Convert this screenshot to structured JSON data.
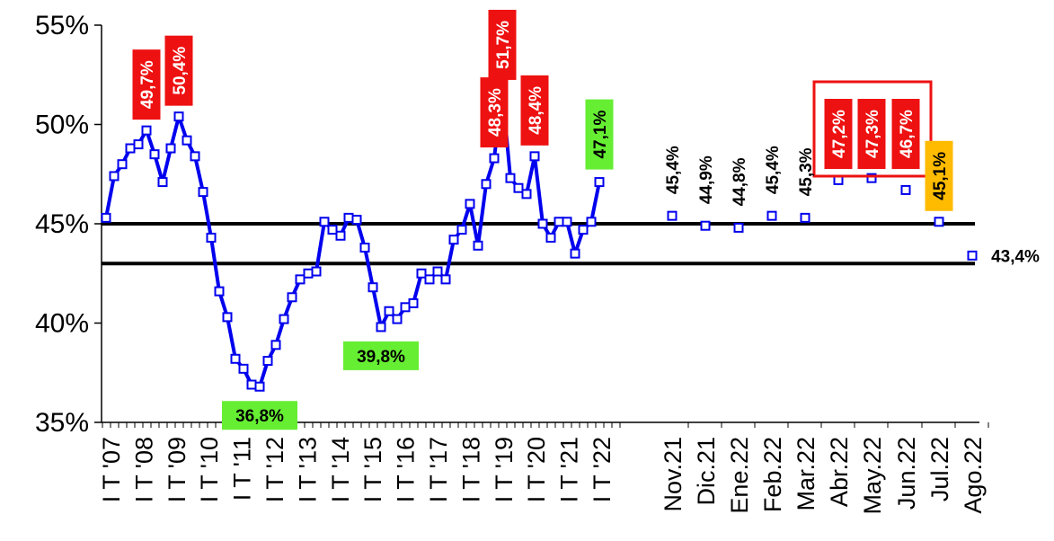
{
  "colors": {
    "series": "#0000ee",
    "marker_fill": "#ffffff",
    "reference_line": "#000000",
    "label_red": "#ee1111",
    "label_green": "#66ee33",
    "label_orange": "#ffbb00",
    "highlight_box": "#ee1111"
  },
  "chart_data": {
    "type": "line",
    "title": "",
    "xlabel": "",
    "ylabel": "",
    "ylim": [
      0.35,
      0.55
    ],
    "y_ticks": [
      "35%",
      "40%",
      "45%",
      "50%",
      "55%"
    ],
    "grid": false,
    "legend": "none",
    "quarterly_x_tick_labels": [
      "I T '07",
      "I T '08",
      "I T '09",
      "I T '10",
      "I T '11",
      "I T '12",
      "I T '13",
      "I T '14",
      "I T '15",
      "I T '16",
      "I T '17",
      "I T '18",
      "I T '19",
      "I T '20",
      "I T '21",
      "I T '22"
    ],
    "monthly_x_tick_labels": [
      "Nov.21",
      "Dic.21",
      "Ene.22",
      "Feb.22",
      "Mar.22",
      "Abr.22",
      "May.22",
      "Jun.22",
      "Jul.22",
      "Ago.22"
    ],
    "reference_lines": [
      0.45,
      0.43
    ],
    "series": [
      {
        "kind": "quarterly",
        "values": [
          0.453,
          0.474,
          0.48,
          0.488,
          0.49,
          0.497,
          0.485,
          0.471,
          0.488,
          0.504,
          0.492,
          0.484,
          0.466,
          0.443,
          0.416,
          0.403,
          0.382,
          0.377,
          0.369,
          0.368,
          0.381,
          0.389,
          0.402,
          0.413,
          0.422,
          0.425,
          0.426,
          0.451,
          0.447,
          0.444,
          0.453,
          0.452,
          0.438,
          0.418,
          0.398,
          0.406,
          0.402,
          0.408,
          0.41,
          0.425,
          0.422,
          0.426,
          0.422,
          0.442,
          0.447,
          0.46,
          0.439,
          0.47,
          0.483,
          0.517,
          0.473,
          0.468,
          0.465,
          0.484,
          0.45,
          0.443,
          0.451,
          0.451,
          0.435,
          0.447,
          0.451,
          0.471
        ]
      },
      {
        "kind": "monthly",
        "categories": [
          "Nov.21",
          "Dic.21",
          "Ene.22",
          "Feb.22",
          "Mar.22",
          "Abr.22",
          "May.22",
          "Jun.22",
          "Jul.22",
          "Ago.22"
        ],
        "values": [
          0.454,
          0.449,
          0.448,
          0.454,
          0.453,
          0.472,
          0.473,
          0.467,
          0.451,
          0.434
        ]
      }
    ],
    "annotations": [
      {
        "text": "49,7%",
        "style": "red",
        "orient": "vertical",
        "series": 0,
        "index": 5
      },
      {
        "text": "50,4%",
        "style": "red",
        "orient": "vertical",
        "series": 0,
        "index": 9
      },
      {
        "text": "36,8%",
        "style": "green",
        "orient": "horizontal",
        "series": 0,
        "index": 19
      },
      {
        "text": "39,8%",
        "style": "green",
        "orient": "horizontal",
        "series": 0,
        "index": 34
      },
      {
        "text": "48,3%",
        "style": "red",
        "orient": "vertical",
        "series": 0,
        "index": 48
      },
      {
        "text": "51,7%",
        "style": "red",
        "orient": "vertical",
        "series": 0,
        "index": 49
      },
      {
        "text": "48,4%",
        "style": "red",
        "orient": "vertical",
        "series": 0,
        "index": 53
      },
      {
        "text": "47,1%",
        "style": "green",
        "orient": "vertical",
        "series": 0,
        "index": 61
      },
      {
        "text": "45,4%",
        "style": "plain",
        "orient": "vertical",
        "series": 1,
        "index": 0
      },
      {
        "text": "44,9%",
        "style": "plain",
        "orient": "vertical",
        "series": 1,
        "index": 1
      },
      {
        "text": "44,8%",
        "style": "plain",
        "orient": "vertical",
        "series": 1,
        "index": 2
      },
      {
        "text": "45,4%",
        "style": "plain",
        "orient": "vertical",
        "series": 1,
        "index": 3
      },
      {
        "text": "45,3%",
        "style": "plain",
        "orient": "vertical",
        "series": 1,
        "index": 4
      },
      {
        "text": "47,2%",
        "style": "red",
        "orient": "vertical",
        "series": 1,
        "index": 5
      },
      {
        "text": "47,3%",
        "style": "red",
        "orient": "vertical",
        "series": 1,
        "index": 6
      },
      {
        "text": "46,7%",
        "style": "red",
        "orient": "vertical",
        "series": 1,
        "index": 7
      },
      {
        "text": "45,1%",
        "style": "orange",
        "orient": "vertical",
        "series": 1,
        "index": 8
      },
      {
        "text": "43,4%",
        "style": "plain",
        "orient": "horizontal",
        "series": 1,
        "index": 9
      }
    ],
    "highlight_groups": [
      [
        5,
        6,
        7
      ]
    ]
  }
}
